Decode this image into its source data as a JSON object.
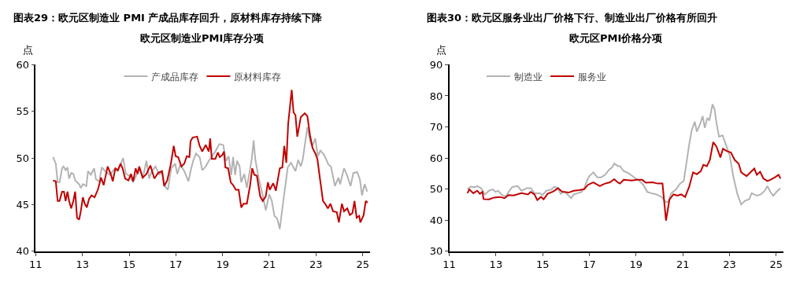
{
  "chart_data": [
    {
      "type": "line",
      "title": "图表29：欧元区制造业 PMI 产成品库存回升，原材料库存持续下降",
      "subtitle": "欧元区制造业PMI库存分项",
      "ylabel": "点",
      "legend": "top",
      "xlim": [
        11,
        25.3
      ],
      "xticks": [
        11,
        13,
        15,
        17,
        19,
        21,
        23,
        25
      ],
      "ylim": [
        40,
        60
      ],
      "yticks": [
        40,
        45,
        50,
        55,
        60
      ],
      "series": [
        {
          "name": "产成品库存",
          "color": "#b3b3b3",
          "x": [
            11.74,
            11.86,
            11.94,
            12.02,
            12.13,
            12.19,
            12.28,
            12.36,
            12.43,
            12.52,
            12.61,
            12.69,
            12.86,
            12.93,
            13.02,
            13.17,
            13.24,
            13.36,
            13.5,
            13.58,
            13.72,
            13.83,
            13.97,
            14.17,
            14.36,
            14.5,
            14.63,
            14.74,
            14.86,
            15.02,
            15.17,
            15.3,
            15.47,
            15.58,
            15.74,
            15.86,
            15.97,
            16.13,
            16.3,
            16.41,
            16.52,
            16.66,
            16.8,
            16.97,
            17.06,
            17.19,
            17.36,
            17.54,
            17.63,
            17.74,
            17.86,
            18.02,
            18.13,
            18.28,
            18.41,
            18.54,
            18.69,
            18.86,
            19.03,
            19.15,
            19.26,
            19.37,
            19.45,
            19.54,
            19.62,
            19.73,
            19.8,
            19.93,
            20.04,
            20.25,
            20.33,
            20.4,
            20.55,
            20.72,
            20.85,
            21.0,
            21.11,
            21.22,
            21.34,
            21.45,
            21.6,
            21.79,
            21.93,
            22.12,
            22.24,
            22.35,
            22.43,
            22.63,
            22.76,
            22.85,
            22.97,
            23.08,
            23.19,
            23.36,
            23.53,
            23.64,
            23.81,
            23.96,
            24.03,
            24.2,
            24.31,
            24.48,
            24.6,
            24.76,
            24.88,
            24.97,
            25.08,
            25.19
          ],
          "values": [
            50.1,
            49.4,
            47.4,
            47.4,
            48.9,
            49.1,
            48.7,
            49.0,
            47.8,
            48.4,
            48.3,
            47.6,
            47.2,
            46.8,
            47.2,
            47.0,
            48.6,
            48.2,
            48.9,
            47.7,
            47.5,
            49.0,
            48.6,
            48.2,
            48.8,
            48.6,
            49.3,
            50.0,
            48.3,
            48.1,
            47.4,
            48.1,
            48.9,
            47.8,
            49.7,
            47.8,
            48.6,
            49.1,
            48.2,
            48.6,
            47.0,
            46.6,
            48.9,
            49.4,
            48.3,
            49.3,
            48.6,
            47.5,
            48.6,
            49.7,
            50.5,
            50.1,
            48.7,
            49.1,
            49.7,
            50.2,
            50.7,
            51.5,
            51.4,
            49.7,
            50.2,
            48.2,
            50.1,
            48.2,
            49.7,
            49.1,
            47.4,
            48.3,
            46.8,
            49.9,
            51.9,
            49.9,
            47.8,
            46.0,
            44.4,
            46.1,
            45.4,
            43.8,
            43.5,
            42.4,
            45.4,
            49.0,
            49.5,
            48.6,
            49.8,
            49.1,
            49.8,
            53.3,
            51.7,
            51.3,
            52.1,
            50.2,
            50.8,
            50.3,
            49.3,
            49.1,
            47.0,
            47.9,
            47.2,
            48.9,
            48.3,
            47.0,
            48.4,
            48.5,
            47.7,
            46.0,
            47.2,
            46.4
          ]
        },
        {
          "name": "原材料库存",
          "color": "#c00000",
          "x": [
            11.74,
            11.86,
            11.94,
            12.02,
            12.13,
            12.21,
            12.28,
            12.36,
            12.43,
            12.52,
            12.61,
            12.69,
            12.77,
            12.86,
            12.93,
            13.02,
            13.1,
            13.19,
            13.28,
            13.39,
            13.52,
            13.66,
            13.8,
            13.91,
            14.08,
            14.21,
            14.3,
            14.41,
            14.52,
            14.63,
            14.72,
            14.83,
            14.97,
            15.08,
            15.17,
            15.28,
            15.36,
            15.43,
            15.58,
            15.74,
            15.91,
            16.08,
            16.24,
            16.41,
            16.5,
            16.63,
            16.78,
            16.91,
            16.99,
            17.1,
            17.24,
            17.36,
            17.47,
            17.58,
            17.63,
            17.72,
            17.91,
            18.02,
            18.13,
            18.28,
            18.41,
            18.47,
            18.54,
            18.69,
            18.8,
            18.88,
            18.98,
            19.06,
            19.12,
            19.24,
            19.35,
            19.45,
            19.57,
            19.69,
            19.8,
            19.9,
            20.04,
            20.18,
            20.27,
            20.36,
            20.47,
            20.61,
            20.72,
            20.85,
            20.94,
            21.02,
            21.17,
            21.28,
            21.45,
            21.56,
            21.64,
            21.73,
            21.81,
            21.96,
            22.04,
            22.12,
            22.2,
            22.35,
            22.52,
            22.63,
            22.74,
            22.85,
            22.97,
            23.06,
            23.17,
            23.3,
            23.39,
            23.51,
            23.62,
            23.73,
            23.89,
            23.98,
            24.11,
            24.2,
            24.34,
            24.45,
            24.56,
            24.65,
            24.74,
            24.85,
            24.9,
            25.04,
            25.13,
            25.21
          ],
          "values": [
            47.6,
            47.5,
            45.4,
            45.4,
            46.4,
            46.4,
            45.4,
            46.4,
            45.4,
            44.6,
            45.4,
            46.4,
            43.6,
            43.4,
            44.3,
            45.8,
            45.1,
            44.7,
            45.6,
            46.0,
            45.8,
            46.6,
            47.9,
            47.1,
            49.1,
            48.3,
            47.5,
            48.9,
            48.7,
            49.4,
            48.9,
            47.8,
            47.6,
            48.3,
            47.5,
            48.9,
            48.3,
            49.1,
            47.9,
            48.3,
            49.2,
            47.8,
            48.4,
            48.6,
            47.0,
            47.6,
            49.3,
            51.3,
            50.2,
            50.1,
            49.1,
            49.4,
            50.2,
            50.1,
            51.8,
            52.2,
            52.3,
            51.3,
            50.7,
            51.4,
            50.7,
            52.1,
            49.9,
            49.9,
            50.6,
            50.1,
            50.3,
            50.7,
            49.0,
            48.9,
            47.4,
            47.1,
            46.6,
            46.6,
            44.7,
            45.1,
            45.1,
            47.1,
            48.9,
            48.2,
            48.1,
            45.9,
            45.4,
            45.9,
            47.4,
            46.6,
            47.3,
            46.5,
            48.9,
            49.0,
            51.3,
            49.5,
            53.7,
            57.3,
            54.9,
            54.6,
            52.3,
            54.4,
            54.8,
            54.5,
            52.5,
            51.1,
            50.5,
            49.9,
            47.8,
            45.4,
            45.1,
            44.6,
            45.1,
            44.3,
            44.2,
            43.1,
            45.1,
            44.3,
            44.6,
            43.9,
            44.1,
            45.4,
            43.6,
            43.8,
            43.1,
            43.9,
            45.4,
            45.2
          ]
        }
      ]
    },
    {
      "type": "line",
      "title": "图表30：欧元区服务业出厂价格下行、制造业出厂价格有所回升",
      "subtitle": "欧元区PMI价格分项",
      "ylabel": "点",
      "legend": "top left",
      "xlim": [
        11,
        25.3
      ],
      "xticks": [
        11,
        13,
        15,
        17,
        19,
        21,
        23,
        25
      ],
      "ylim": [
        30,
        90
      ],
      "yticks": [
        30,
        40,
        50,
        60,
        70,
        80,
        90
      ],
      "series": [
        {
          "name": "制造业",
          "color": "#b3b3b3",
          "x": [
            11.78,
            11.92,
            12.08,
            12.2,
            12.36,
            12.53,
            12.7,
            12.87,
            12.98,
            13.09,
            13.26,
            13.42,
            13.54,
            13.7,
            13.93,
            14.09,
            14.32,
            14.49,
            14.65,
            14.88,
            14.99,
            15.16,
            15.38,
            15.49,
            15.66,
            15.77,
            15.94,
            16.11,
            16.22,
            16.33,
            16.5,
            16.66,
            16.78,
            16.89,
            17.0,
            17.17,
            17.34,
            17.5,
            17.67,
            17.84,
            17.97,
            18.06,
            18.23,
            18.31,
            18.47,
            18.7,
            18.92,
            19.15,
            19.31,
            19.48,
            19.65,
            19.87,
            20.09,
            20.26,
            20.37,
            20.51,
            20.71,
            20.88,
            21.04,
            21.16,
            21.27,
            21.38,
            21.51,
            21.6,
            21.74,
            21.85,
            21.94,
            22.05,
            22.14,
            22.27,
            22.36,
            22.44,
            22.55,
            22.7,
            22.83,
            23.0,
            23.17,
            23.34,
            23.5,
            23.67,
            23.84,
            23.95,
            24.17,
            24.34,
            24.51,
            24.62,
            24.75,
            24.87,
            25.01,
            25.18
          ],
          "values": [
            50.0,
            50.8,
            50.6,
            51.0,
            50.3,
            48.3,
            49.5,
            49.9,
            49.1,
            49.5,
            48.1,
            47.6,
            49.1,
            50.7,
            51.0,
            49.5,
            50.3,
            50.3,
            48.7,
            48.7,
            48.1,
            49.5,
            49.9,
            50.8,
            50.3,
            48.5,
            49.2,
            47.9,
            47.1,
            48.3,
            48.7,
            49.1,
            50.3,
            52.6,
            54.2,
            55.4,
            53.8,
            53.8,
            54.6,
            56.2,
            57.0,
            58.2,
            57.4,
            57.4,
            55.8,
            55.0,
            53.8,
            52.6,
            51.4,
            49.1,
            48.7,
            48.3,
            47.5,
            45.9,
            45.9,
            48.7,
            49.9,
            51.8,
            52.6,
            58.6,
            64.2,
            68.9,
            71.7,
            68.5,
            70.9,
            73.5,
            69.7,
            72.9,
            72.1,
            77.3,
            75.7,
            71.3,
            66.9,
            67.3,
            64.6,
            61.0,
            53.8,
            48.3,
            45.1,
            46.3,
            46.7,
            48.7,
            47.9,
            48.3,
            49.5,
            51.0,
            49.1,
            47.9,
            49.1,
            50.3
          ]
        },
        {
          "name": "服务业",
          "color": "#c00000",
          "x": [
            11.78,
            11.86,
            12.03,
            12.2,
            12.31,
            12.42,
            12.47,
            12.7,
            12.92,
            13.15,
            13.37,
            13.54,
            13.76,
            14.09,
            14.37,
            14.49,
            14.65,
            14.77,
            14.93,
            15.04,
            15.21,
            15.44,
            15.66,
            15.83,
            16.11,
            16.33,
            16.55,
            16.78,
            16.94,
            17.17,
            17.45,
            17.67,
            17.89,
            18.06,
            18.23,
            18.31,
            18.47,
            18.81,
            19.03,
            19.26,
            19.42,
            19.7,
            19.93,
            20.13,
            20.28,
            20.43,
            20.6,
            20.77,
            20.93,
            21.1,
            21.27,
            21.44,
            21.6,
            21.77,
            21.88,
            22.03,
            22.16,
            22.3,
            22.44,
            22.61,
            22.72,
            22.89,
            23.06,
            23.22,
            23.39,
            23.5,
            23.73,
            23.95,
            24.06,
            24.17,
            24.31,
            24.45,
            24.62,
            24.75,
            24.96,
            25.1,
            25.18
          ],
          "values": [
            48.7,
            49.9,
            48.7,
            49.5,
            48.5,
            49.1,
            46.8,
            46.7,
            47.3,
            47.5,
            47.1,
            48.1,
            48.0,
            48.7,
            48.3,
            49.1,
            48.3,
            46.5,
            47.5,
            46.7,
            48.5,
            49.2,
            50.3,
            49.2,
            48.9,
            49.5,
            49.7,
            50.0,
            51.4,
            52.2,
            51.0,
            51.8,
            52.2,
            53.2,
            52.1,
            51.8,
            53.0,
            52.8,
            53.0,
            53.0,
            52.1,
            52.2,
            51.8,
            51.8,
            39.9,
            46.7,
            48.3,
            47.9,
            48.3,
            47.5,
            50.7,
            55.4,
            54.8,
            55.8,
            57.8,
            57.4,
            59.4,
            65.1,
            63.7,
            60.2,
            63.0,
            62.2,
            61.8,
            59.4,
            58.2,
            55.4,
            54.2,
            55.8,
            56.6,
            54.6,
            55.6,
            53.4,
            52.6,
            53.0,
            53.9,
            54.6,
            53.4
          ]
        }
      ]
    }
  ]
}
